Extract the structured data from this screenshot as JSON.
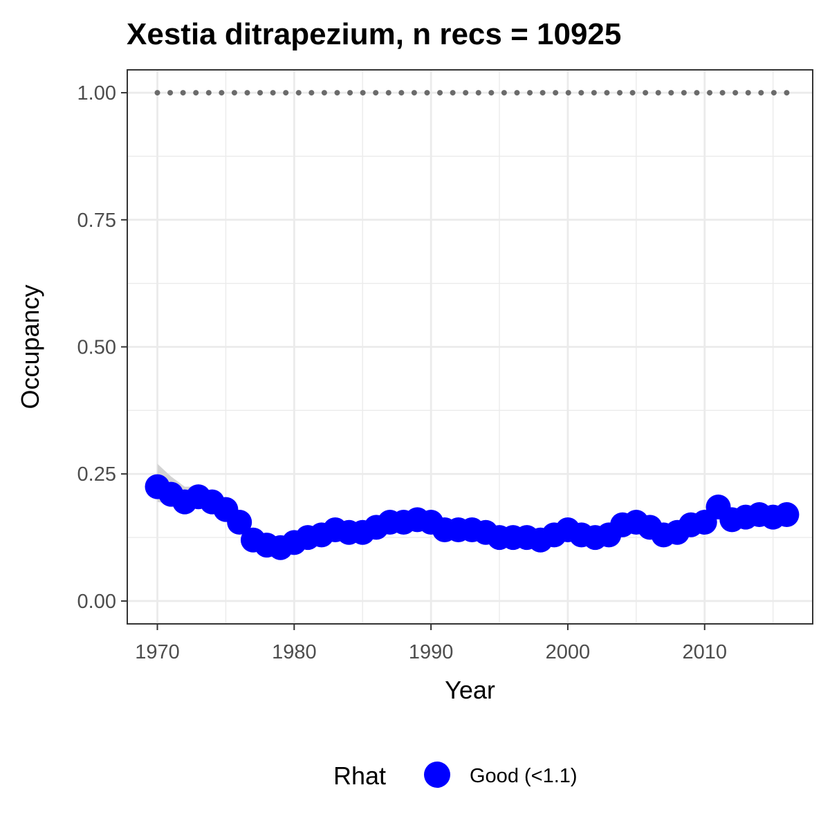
{
  "chart_data": {
    "type": "line",
    "title": "Xestia ditrapezium, n recs = 10925",
    "xlabel": "Year",
    "ylabel": "Occupancy",
    "xlim": [
      1967.8,
      2017.9
    ],
    "ylim": [
      -0.045,
      1.045
    ],
    "x_ticks": [
      1970,
      1980,
      1990,
      2000,
      2010
    ],
    "x_tick_labels": [
      "1970",
      "1980",
      "1990",
      "2000",
      "2010"
    ],
    "y_ticks": [
      0,
      0.25,
      0.5,
      0.75,
      1.0
    ],
    "y_tick_labels": [
      "0.00",
      "0.25",
      "0.50",
      "0.75",
      "1.00"
    ],
    "grid": true,
    "legend": {
      "title": "Rhat",
      "position": "bottom",
      "entries": [
        "Good (<1.1)"
      ]
    },
    "colors": {
      "series": "#0000ff",
      "ribbon": "#d3d3d3",
      "reference": "#6b6b6b",
      "grid": "#ebebeb",
      "panel_border": "#333333"
    },
    "series": [
      {
        "name": "Good (<1.1)",
        "x": [
          1970,
          1971,
          1972,
          1973,
          1974,
          1975,
          1976,
          1977,
          1978,
          1979,
          1980,
          1981,
          1982,
          1983,
          1984,
          1985,
          1986,
          1987,
          1988,
          1989,
          1990,
          1991,
          1992,
          1993,
          1994,
          1995,
          1996,
          1997,
          1998,
          1999,
          2000,
          2001,
          2002,
          2003,
          2004,
          2005,
          2006,
          2007,
          2008,
          2009,
          2010,
          2011,
          2012,
          2013,
          2014,
          2015,
          2016
        ],
        "y": [
          0.225,
          0.21,
          0.195,
          0.205,
          0.195,
          0.18,
          0.155,
          0.12,
          0.11,
          0.105,
          0.115,
          0.125,
          0.13,
          0.14,
          0.135,
          0.135,
          0.145,
          0.155,
          0.155,
          0.16,
          0.155,
          0.14,
          0.14,
          0.14,
          0.135,
          0.125,
          0.125,
          0.125,
          0.12,
          0.13,
          0.14,
          0.13,
          0.125,
          0.13,
          0.15,
          0.155,
          0.145,
          0.13,
          0.135,
          0.15,
          0.155,
          0.185,
          0.16,
          0.165,
          0.17,
          0.165,
          0.17
        ],
        "lower": [
          0.195,
          0.19,
          0.18,
          0.19,
          0.18,
          0.165,
          0.14,
          0.11,
          0.1,
          0.095,
          0.105,
          0.115,
          0.12,
          0.13,
          0.125,
          0.125,
          0.135,
          0.145,
          0.145,
          0.15,
          0.145,
          0.13,
          0.13,
          0.13,
          0.125,
          0.115,
          0.115,
          0.115,
          0.11,
          0.12,
          0.13,
          0.12,
          0.115,
          0.12,
          0.14,
          0.145,
          0.135,
          0.12,
          0.125,
          0.14,
          0.145,
          0.17,
          0.15,
          0.155,
          0.16,
          0.155,
          0.16
        ],
        "upper": [
          0.27,
          0.245,
          0.225,
          0.225,
          0.215,
          0.2,
          0.175,
          0.135,
          0.125,
          0.12,
          0.13,
          0.14,
          0.145,
          0.155,
          0.15,
          0.15,
          0.16,
          0.17,
          0.17,
          0.175,
          0.17,
          0.155,
          0.155,
          0.155,
          0.15,
          0.14,
          0.14,
          0.14,
          0.135,
          0.145,
          0.155,
          0.145,
          0.14,
          0.145,
          0.165,
          0.17,
          0.16,
          0.145,
          0.15,
          0.165,
          0.17,
          0.2,
          0.175,
          0.18,
          0.185,
          0.18,
          0.195
        ]
      }
    ],
    "reference": {
      "y": 1.0,
      "style": "dotted"
    }
  }
}
